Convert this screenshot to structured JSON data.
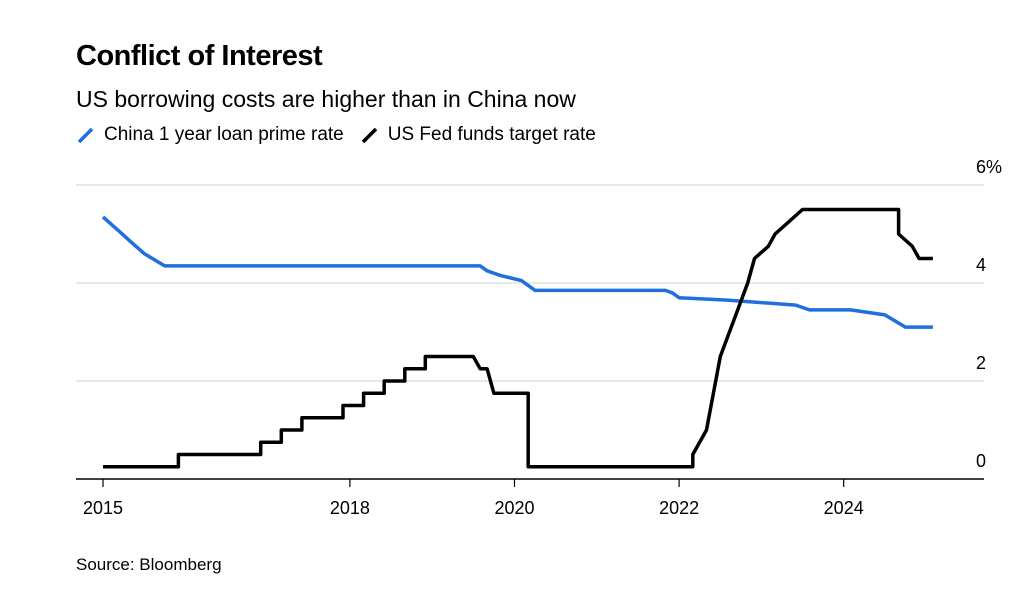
{
  "title": "Conflict of Interest",
  "subtitle": "US borrowing costs are higher than in China now",
  "source": "Source: Bloomberg",
  "colors": {
    "china": "#1f6fdf",
    "us": "#000000",
    "grid": "#e1e1e1",
    "axis": "#000000"
  },
  "chart_data": {
    "type": "line",
    "title": "Conflict of Interest",
    "subtitle": "US borrowing costs are higher than in China now",
    "xlabel": "",
    "ylabel": "",
    "x_ticks": [
      "2015",
      "2018",
      "2020",
      "2022",
      "2024"
    ],
    "y_ticks": [
      "0",
      "2",
      "4",
      "6%"
    ],
    "y_tick_values": [
      0,
      2,
      4,
      6
    ],
    "ylim": [
      0,
      6
    ],
    "grid": "horizontal",
    "y_axis_side": "right",
    "legend_position": "top-left",
    "series": [
      {
        "name": "China 1 year loan prime rate",
        "color": "#1f6fdf",
        "points": [
          [
            "2015-01",
            5.35
          ],
          [
            "2015-03",
            5.1
          ],
          [
            "2015-05",
            4.85
          ],
          [
            "2015-07",
            4.6
          ],
          [
            "2015-10",
            4.35
          ],
          [
            "2019-08",
            4.35
          ],
          [
            "2019-09",
            4.25
          ],
          [
            "2019-11",
            4.15
          ],
          [
            "2020-02",
            4.05
          ],
          [
            "2020-04",
            3.85
          ],
          [
            "2021-11",
            3.85
          ],
          [
            "2021-12",
            3.8
          ],
          [
            "2022-01",
            3.7
          ],
          [
            "2022-08",
            3.65
          ],
          [
            "2023-06",
            3.55
          ],
          [
            "2023-08",
            3.45
          ],
          [
            "2024-02",
            3.45
          ],
          [
            "2024-07",
            3.35
          ],
          [
            "2024-10",
            3.1
          ],
          [
            "2025-02",
            3.1
          ]
        ]
      },
      {
        "name": "US Fed funds target rate",
        "color": "#000000",
        "points": [
          [
            "2015-01",
            0.25
          ],
          [
            "2015-12",
            0.25
          ],
          [
            "2015-12",
            0.5
          ],
          [
            "2016-12",
            0.5
          ],
          [
            "2016-12",
            0.75
          ],
          [
            "2017-03",
            0.75
          ],
          [
            "2017-03",
            1.0
          ],
          [
            "2017-06",
            1.0
          ],
          [
            "2017-06",
            1.25
          ],
          [
            "2017-12",
            1.25
          ],
          [
            "2017-12",
            1.5
          ],
          [
            "2018-03",
            1.5
          ],
          [
            "2018-03",
            1.75
          ],
          [
            "2018-06",
            1.75
          ],
          [
            "2018-06",
            2.0
          ],
          [
            "2018-09",
            2.0
          ],
          [
            "2018-09",
            2.25
          ],
          [
            "2018-12",
            2.25
          ],
          [
            "2018-12",
            2.5
          ],
          [
            "2019-07",
            2.5
          ],
          [
            "2019-08",
            2.25
          ],
          [
            "2019-09",
            2.25
          ],
          [
            "2019-10",
            1.75
          ],
          [
            "2020-03",
            1.75
          ],
          [
            "2020-03",
            1.0
          ],
          [
            "2020-03",
            0.25
          ],
          [
            "2022-03",
            0.25
          ],
          [
            "2022-03",
            0.5
          ],
          [
            "2022-05",
            1.0
          ],
          [
            "2022-06",
            1.75
          ],
          [
            "2022-07",
            2.5
          ],
          [
            "2022-09",
            3.25
          ],
          [
            "2022-11",
            4.0
          ],
          [
            "2022-12",
            4.5
          ],
          [
            "2023-02",
            4.75
          ],
          [
            "2023-03",
            5.0
          ],
          [
            "2023-05",
            5.25
          ],
          [
            "2023-07",
            5.5
          ],
          [
            "2024-09",
            5.5
          ],
          [
            "2024-09",
            5.0
          ],
          [
            "2024-11",
            4.75
          ],
          [
            "2024-12",
            4.5
          ],
          [
            "2025-02",
            4.5
          ]
        ]
      }
    ]
  }
}
